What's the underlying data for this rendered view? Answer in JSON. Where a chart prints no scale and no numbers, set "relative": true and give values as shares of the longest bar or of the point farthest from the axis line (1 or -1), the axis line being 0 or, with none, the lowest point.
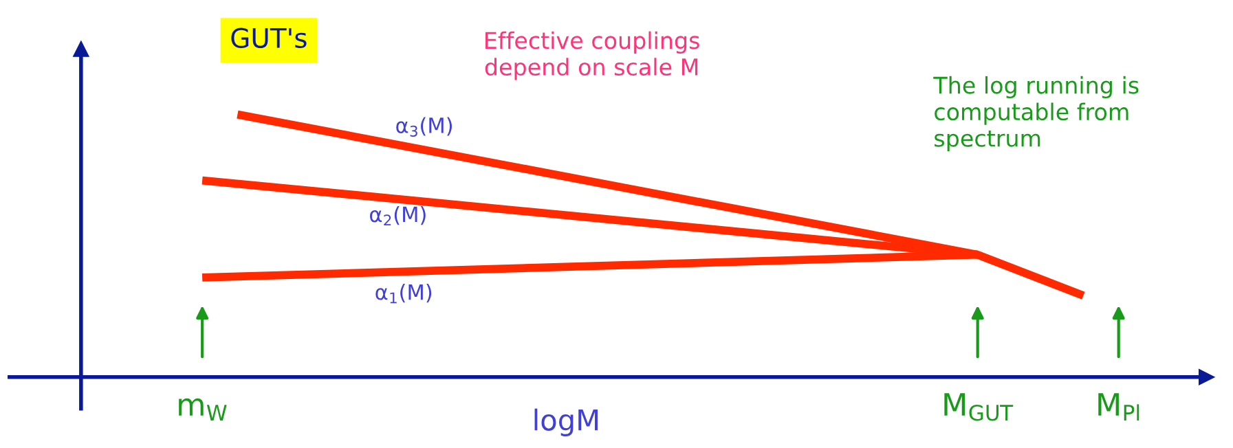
{
  "chart_data": {
    "type": "line",
    "title": "GUT's",
    "xlabel": "logM",
    "relative": true,
    "annotations": [
      "Effective couplings\ndepend on scale M",
      "The log running is\ncomputable from\nspectrum"
    ],
    "categories": [
      "m$_{W}$",
      null,
      null,
      null,
      null,
      null,
      null,
      null,
      null,
      null,
      null,
      null,
      null,
      null,
      null,
      null,
      null,
      null,
      null,
      null,
      null,
      null,
      "M$_{GUT}$",
      null,
      null,
      null,
      "M$_{Pl}$"
    ],
    "tick_labels": "x",
    "marker": "none",
    "line_style": "solid",
    "series": [
      {
        "name": "α$_{3}$(M)",
        "color": "#ff2a00",
        "values": [
          null,
          1,
          null,
          null,
          null,
          null,
          null,
          null,
          null,
          null,
          null,
          null,
          null,
          null,
          null,
          null,
          null,
          null,
          null,
          null,
          null,
          null,
          0.466,
          null,
          null,
          0.31,
          null
        ]
      },
      {
        "name": "α$_{2}$(M)",
        "color": "#ff2a00",
        "values": [
          0.749,
          null,
          null,
          null,
          null,
          null,
          null,
          null,
          null,
          null,
          null,
          null,
          null,
          null,
          null,
          null,
          null,
          null,
          null,
          null,
          null,
          null,
          0.466,
          null,
          null,
          null,
          null
        ]
      },
      {
        "name": "α$_{1}$(M)",
        "color": "#ff2a00",
        "values": [
          0.379,
          null,
          null,
          null,
          null,
          null,
          null,
          null,
          null,
          null,
          null,
          null,
          null,
          null,
          null,
          null,
          null,
          null,
          null,
          null,
          null,
          null,
          0.466,
          null,
          null,
          null,
          null
        ]
      }
    ]
  }
}
